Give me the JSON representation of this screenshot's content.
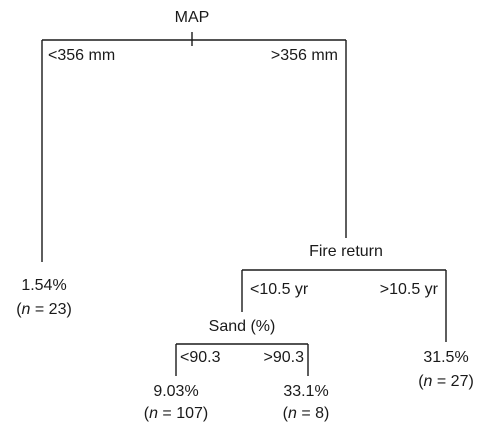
{
  "root": {
    "label": "MAP"
  },
  "map_split": {
    "left_label": "<356 mm",
    "right_label": ">356 mm"
  },
  "leaf_map_low": {
    "value": "1.54%",
    "n_prefix": "(",
    "n_var": "n",
    "n_suffix": " = 23)"
  },
  "fire_node": {
    "label": "Fire return"
  },
  "fire_split": {
    "left_label": "<10.5 yr",
    "right_label": ">10.5 yr"
  },
  "leaf_fire_high": {
    "value": "31.5%",
    "n_prefix": "(",
    "n_var": "n",
    "n_suffix": " = 27)"
  },
  "sand_node": {
    "label": "Sand (%)"
  },
  "sand_split": {
    "left_label": "<90.3",
    "right_label": ">90.3"
  },
  "leaf_sand_low": {
    "value": "9.03%",
    "n_prefix": "(",
    "n_var": "n",
    "n_suffix": " = 107)"
  },
  "leaf_sand_high": {
    "value": "33.1%",
    "n_prefix": "(",
    "n_var": "n",
    "n_suffix": " = 8)"
  }
}
